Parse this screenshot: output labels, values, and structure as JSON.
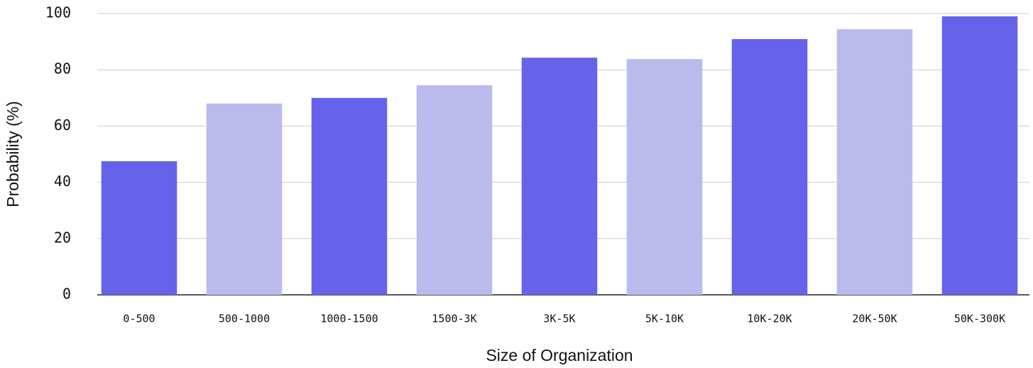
{
  "chart_data": {
    "type": "bar",
    "xlabel": "Size of Organization",
    "ylabel": "Probability (%)",
    "categories": [
      "0-500",
      "500-1000",
      "1000-1500",
      "1500-3K",
      "3K-5K",
      "5K-10K",
      "10K-20K",
      "20K-50K",
      "50K-300K"
    ],
    "values": [
      47.5,
      68,
      70,
      74.5,
      84.3,
      83.8,
      90.9,
      94.4,
      99
    ],
    "colors": [
      "#6563ea",
      "#babbec",
      "#6563ea",
      "#babbec",
      "#6563ea",
      "#babbec",
      "#6563ea",
      "#babbec",
      "#6563ea"
    ],
    "ylim": [
      0,
      100
    ],
    "yticks": [
      0,
      20,
      40,
      60,
      80,
      100
    ],
    "grid": true
  }
}
